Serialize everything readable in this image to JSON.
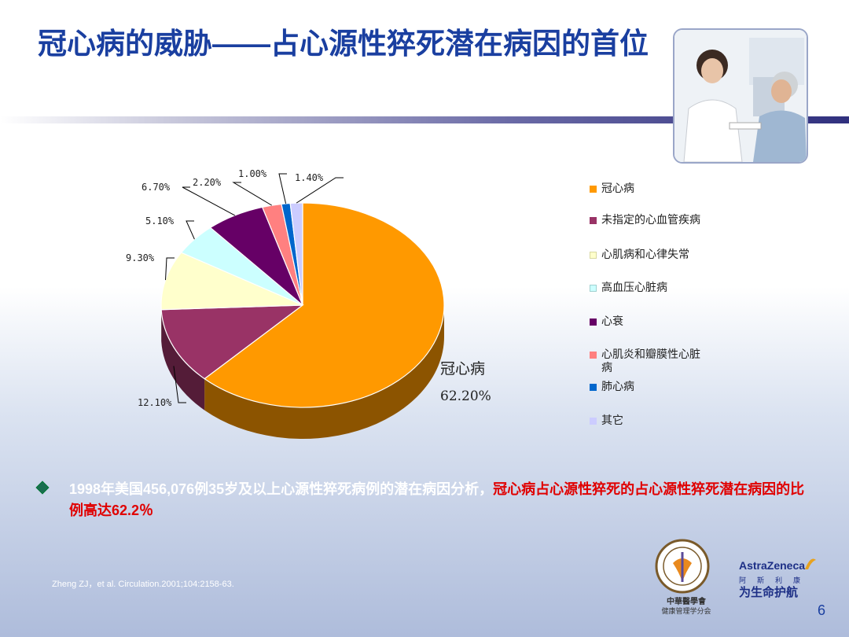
{
  "slide": {
    "title": "冠心病的威胁——占心源性猝死潜在病因的首位",
    "body_part1": "1998年美国456,076例35岁及以上心源性猝死病例的潜在病因分析，",
    "body_highlight": "冠心病占心源性猝死的占心源性猝死潜在病因的比例高达62.2％",
    "citation": "Zheng ZJ，et al. Circulation.2001;104:2158-63.",
    "page_number": "6",
    "cma_text1": "中華醫學會",
    "cma_text2": "健康管理学分会",
    "az_name": "AstraZeneca",
    "az_chinese": "阿斯利康",
    "az_slogan": "为生命护航"
  },
  "chart_data": {
    "type": "pie",
    "style": "3d",
    "categories": [
      "冠心病",
      "未指定的心血管疾病",
      "心肌病和心律失常",
      "高血压心脏病",
      "心衰",
      "心肌炎和瓣膜性心脏病",
      "肺心病",
      "其它"
    ],
    "values": [
      62.2,
      12.1,
      9.3,
      5.1,
      6.7,
      2.2,
      1.0,
      1.4
    ],
    "data_labels": [
      "62.20%",
      "12.10%",
      "9.30%",
      "5.10%",
      "6.70%",
      "2.20%",
      "1.00%",
      "1.40%"
    ],
    "highlight_label": "冠心病",
    "colors": [
      "#ff9900",
      "#993366",
      "#ffffcc",
      "#ccffff",
      "#660066",
      "#ff8080",
      "#0066cc",
      "#ccccff"
    ],
    "legend_position": "right"
  }
}
